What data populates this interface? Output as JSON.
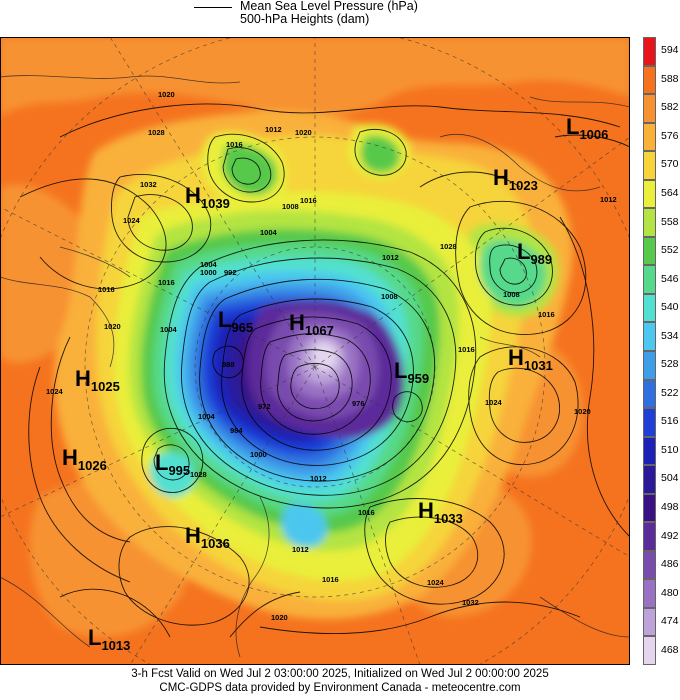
{
  "legend": {
    "line1": "Mean Sea Level Pressure (hPa)",
    "line2": "500-hPa Heights (dam)"
  },
  "colorbar": {
    "labels": [
      "594",
      "588",
      "582",
      "576",
      "570",
      "564",
      "558",
      "552",
      "546",
      "540",
      "534",
      "528",
      "522",
      "516",
      "510",
      "504",
      "498",
      "492",
      "486",
      "480",
      "474",
      "468"
    ],
    "colors": [
      "#e8141c",
      "#f5731f",
      "#f79232",
      "#f9b13a",
      "#f6d43a",
      "#e9ef3a",
      "#b3e443",
      "#57c94c",
      "#56d98a",
      "#52e0d0",
      "#4cc7ef",
      "#3f9ee8",
      "#2f6fe0",
      "#1f3fd6",
      "#1c22b8",
      "#2a1a9a",
      "#3a1184",
      "#5b2b9a",
      "#7a4cae",
      "#9a72c4",
      "#bda3da",
      "#e3d6ee"
    ]
  },
  "pressure_centers": [
    {
      "type": "H",
      "value": "1039"
    },
    {
      "type": "H",
      "value": "1023"
    },
    {
      "type": "L",
      "value": "1006"
    },
    {
      "type": "L",
      "value": "989"
    },
    {
      "type": "H",
      "value": "1031"
    },
    {
      "type": "H",
      "value": "1067"
    },
    {
      "type": "L",
      "value": "965"
    },
    {
      "type": "L",
      "value": "959"
    },
    {
      "type": "H",
      "value": "1025"
    },
    {
      "type": "H",
      "value": "1026"
    },
    {
      "type": "L",
      "value": "995"
    },
    {
      "type": "H",
      "value": "1036"
    },
    {
      "type": "H",
      "value": "1033"
    },
    {
      "type": "L",
      "value": "1013"
    }
  ],
  "contour_labels": [
    "1020",
    "1028",
    "1012",
    "1016",
    "1032",
    "1024",
    "1004",
    "1008",
    "1016",
    "1020",
    "1012",
    "1028",
    "1008",
    "1016",
    "1012",
    "1004",
    "992",
    "1000",
    "1016",
    "1020",
    "1024",
    "1016",
    "1004",
    "988",
    "1004",
    "984",
    "972",
    "976",
    "1008",
    "1000",
    "1012",
    "1016",
    "1024",
    "1020",
    "1024",
    "1032",
    "1016",
    "1012",
    "1016",
    "1028",
    "1020"
  ],
  "footer": {
    "line1": "3-h Fcst Valid on Wed Jul  2 03:00:00 2025, Initialized on Wed Jul  2 00:00:00 2025",
    "line2": "CMC-GDPS data provided by Environment Canada - meteocentre.com"
  }
}
